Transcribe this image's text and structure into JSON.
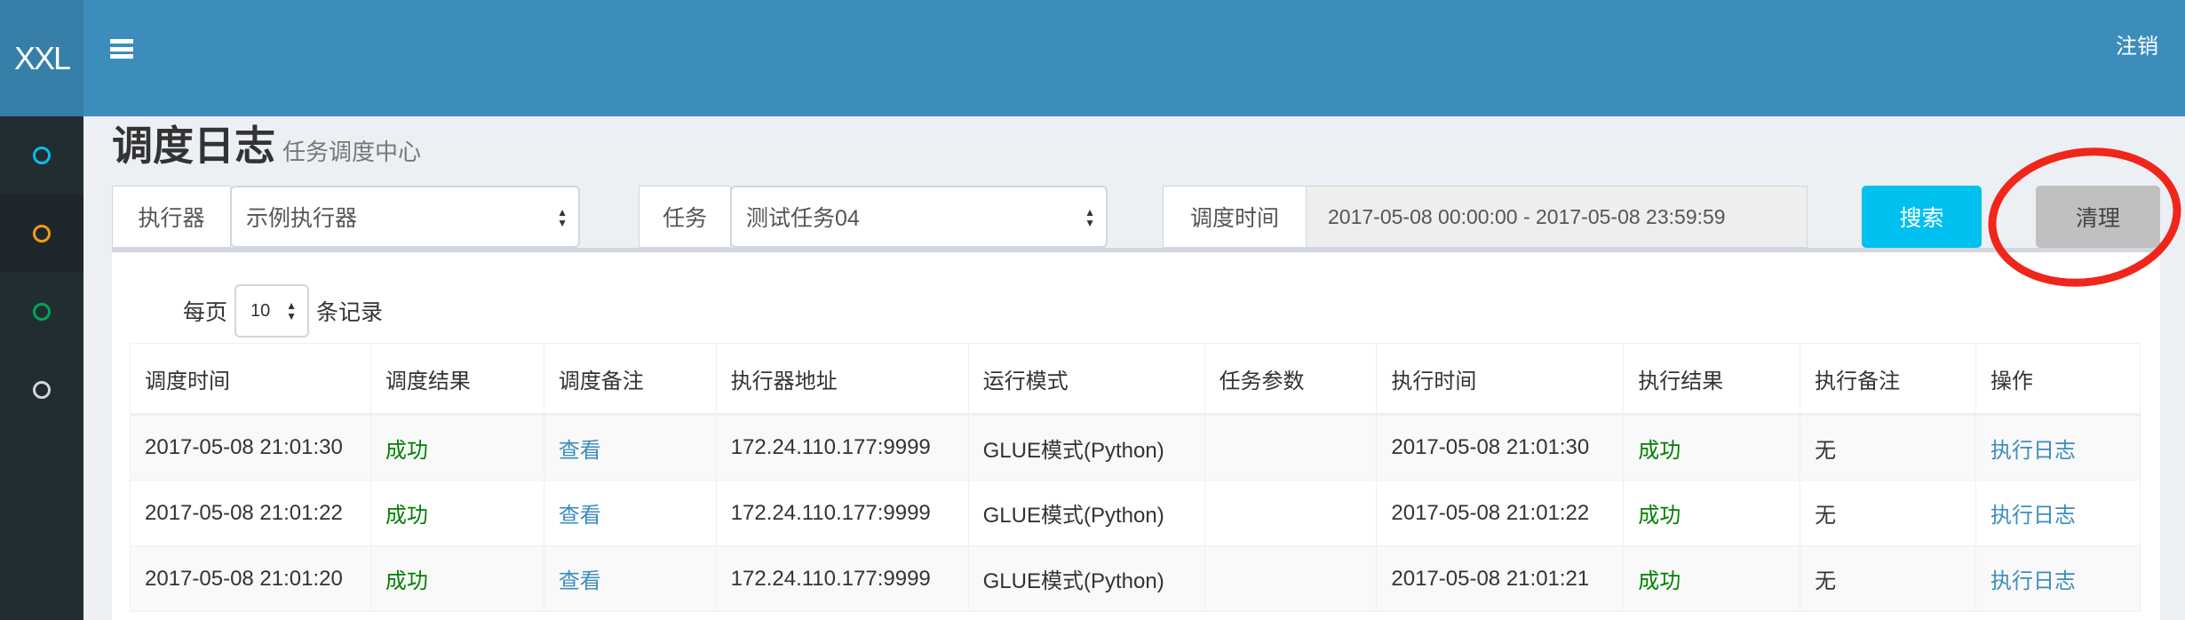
{
  "app": {
    "logo": "XXL",
    "logout": "注销"
  },
  "sidebar": {
    "items": [
      {
        "color": "#00c0ef"
      },
      {
        "color": "#f39c12"
      },
      {
        "color": "#00a65a"
      },
      {
        "color": "#d2d6de"
      }
    ]
  },
  "page": {
    "title": "调度日志",
    "subtitle": "任务调度中心"
  },
  "filters": {
    "executor_label": "执行器",
    "executor_value": "示例执行器",
    "job_label": "任务",
    "job_value": "测试任务04",
    "time_label": "调度时间",
    "time_value": "2017-05-08 00:00:00 - 2017-05-08 23:59:59",
    "search": "搜索",
    "clear": "清理"
  },
  "length": {
    "prefix": "每页",
    "value": "10",
    "suffix": "条记录"
  },
  "table": {
    "headers": [
      "调度时间",
      "调度结果",
      "调度备注",
      "执行器地址",
      "运行模式",
      "任务参数",
      "执行时间",
      "执行结果",
      "执行备注",
      "操作"
    ],
    "rows": [
      [
        "2017-05-08 21:01:30",
        "成功",
        "查看",
        "172.24.110.177:9999",
        "GLUE模式(Python)",
        "",
        "2017-05-08 21:01:30",
        "成功",
        "无",
        "执行日志"
      ],
      [
        "2017-05-08 21:01:22",
        "成功",
        "查看",
        "172.24.110.177:9999",
        "GLUE模式(Python)",
        "",
        "2017-05-08 21:01:22",
        "成功",
        "无",
        "执行日志"
      ],
      [
        "2017-05-08 21:01:20",
        "成功",
        "查看",
        "172.24.110.177:9999",
        "GLUE模式(Python)",
        "",
        "2017-05-08 21:01:21",
        "成功",
        "无",
        "执行日志"
      ]
    ]
  },
  "colors": {
    "header": "#3c8dbc",
    "search": "#00c0ef",
    "success": "#008000",
    "link": "#3c8dbc",
    "annotation": "#f0261b"
  }
}
